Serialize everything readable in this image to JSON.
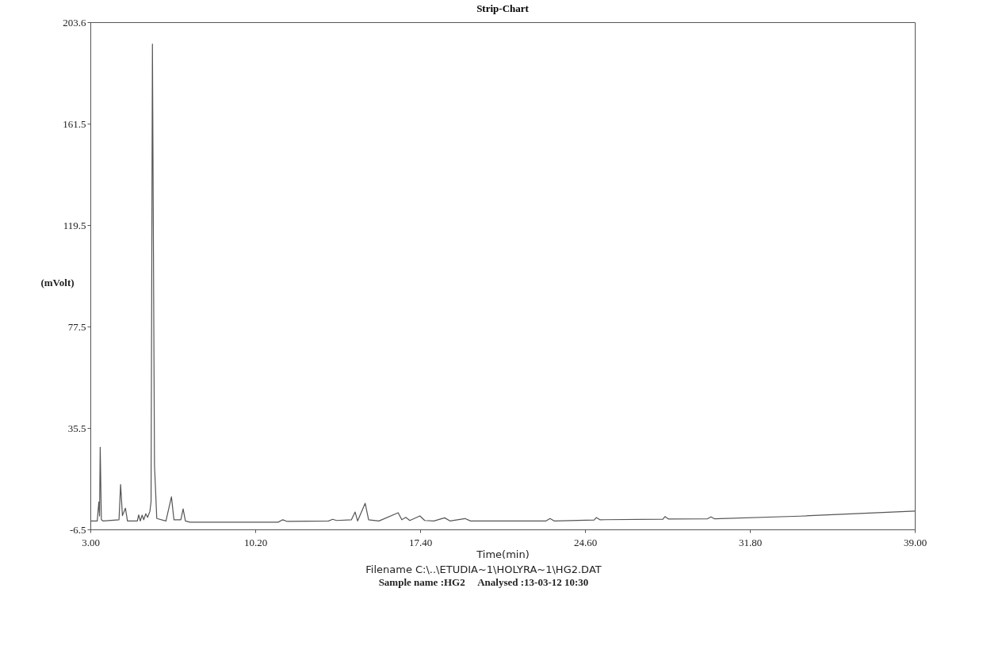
{
  "chart_data": {
    "type": "line",
    "title": "Strip-Chart",
    "xlabel": "Time(min)",
    "ylabel": "(mVolt)",
    "xlim": [
      3,
      39
    ],
    "ylim": [
      -6.5,
      203.6
    ],
    "xticks": [
      {
        "value": 3,
        "label": "3.00"
      },
      {
        "value": 10.2,
        "label": "10.20"
      },
      {
        "value": 17.4,
        "label": "17.40"
      },
      {
        "value": 24.6,
        "label": "24.60"
      },
      {
        "value": 31.8,
        "label": "31.80"
      },
      {
        "value": 39,
        "label": "39.00"
      }
    ],
    "yticks": [
      -6.5,
      35.5,
      77.5,
      119.5,
      161.5,
      203.6
    ],
    "grid": false,
    "x": [
      3.0,
      3.3,
      3.37,
      3.4,
      3.43,
      3.48,
      3.55,
      4.25,
      4.32,
      4.4,
      4.53,
      4.62,
      5.05,
      5.11,
      5.18,
      5.26,
      5.33,
      5.42,
      5.5,
      5.6,
      5.65,
      5.71,
      5.8,
      5.9,
      6.3,
      6.54,
      6.65,
      6.95,
      7.05,
      7.15,
      7.35,
      11.2,
      11.4,
      11.6,
      13.4,
      13.58,
      13.75,
      14.4,
      14.56,
      14.67,
      15.0,
      15.15,
      15.6,
      16.44,
      16.6,
      16.77,
      16.95,
      17.39,
      17.6,
      18.0,
      18.47,
      18.7,
      19.36,
      19.6,
      22.9,
      23.07,
      23.25,
      25.0,
      25.09,
      25.25,
      28.0,
      28.09,
      28.25,
      29.95,
      30.1,
      30.25,
      34.0,
      39.0
    ],
    "series": [
      {
        "color": "#555555",
        "values": [
          -3,
          -3,
          4.9,
          -1,
          27.5,
          -2.5,
          -3,
          -2.5,
          12.1,
          -0.8,
          2.3,
          -3,
          -3,
          -0.5,
          -3,
          -0.6,
          -2.5,
          0,
          -1.5,
          1,
          5,
          194.5,
          20,
          -2,
          -3,
          7,
          -2.5,
          -2.5,
          2,
          -3,
          -3.5,
          -3.5,
          -2.5,
          -3.2,
          -3,
          -2.3,
          -2.8,
          -2.5,
          0.7,
          -3,
          4.3,
          -2.5,
          -3,
          0.4,
          -2.5,
          -1.5,
          -2.8,
          -0.9,
          -2.8,
          -3,
          -1.7,
          -3,
          -2,
          -3,
          -3,
          -2,
          -3,
          -2.6,
          -1.6,
          -2.5,
          -2.3,
          -1.2,
          -2.2,
          -2.1,
          -1.3,
          -2.1,
          -1,
          1.1
        ]
      }
    ],
    "annotations": [
      "Filename C:\\..\\ETUDIA~1\\HOLYRA~1\\HG2.DAT",
      "Sample name :HG2     Analysed :13-03-12 10:30"
    ]
  }
}
